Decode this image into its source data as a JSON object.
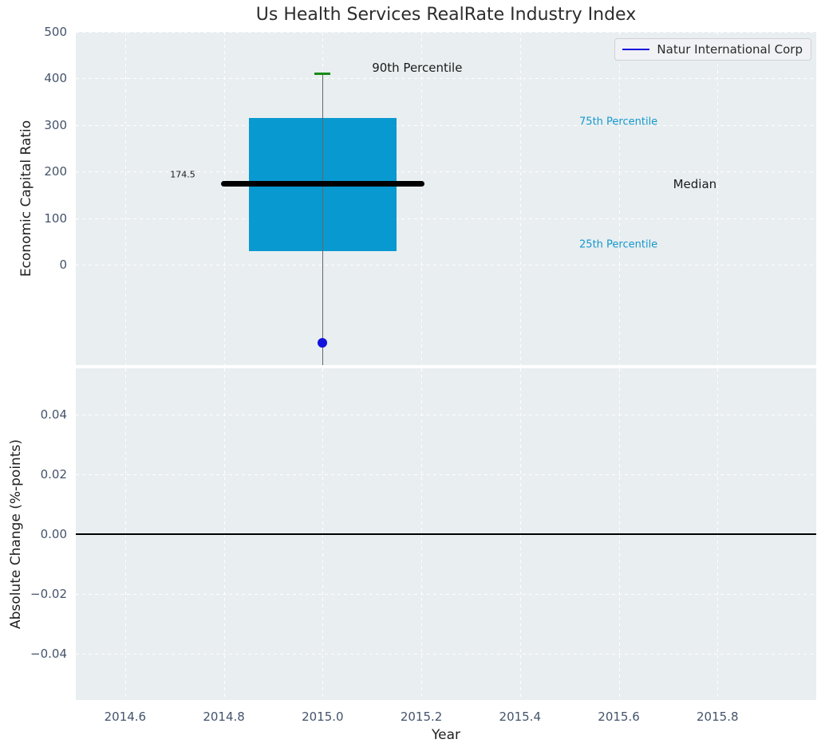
{
  "chart_data": {
    "type": "boxplot",
    "title": "Us Health Services RealRate Industry Index",
    "xlabel": "Year",
    "xlim": [
      2014.5,
      2016.0
    ],
    "x_ticks": [
      {
        "v": 2014.6,
        "label": "2014.6"
      },
      {
        "v": 2014.8,
        "label": "2014.8"
      },
      {
        "v": 2015.0,
        "label": "2015.0"
      },
      {
        "v": 2015.2,
        "label": "2015.2"
      },
      {
        "v": 2015.4,
        "label": "2015.4"
      },
      {
        "v": 2015.6,
        "label": "2015.6"
      },
      {
        "v": 2015.8,
        "label": "2015.8"
      }
    ],
    "legend": {
      "label": "Natur International Corp",
      "line_color": "#1212dd",
      "position": "upper right"
    },
    "top_panel": {
      "ylabel": "Economic Capital Ratio",
      "ylim": [
        -215,
        500
      ],
      "y_ticks": [
        {
          "v": 0,
          "label": "0"
        },
        {
          "v": 100,
          "label": "100"
        },
        {
          "v": 200,
          "label": "200"
        },
        {
          "v": 300,
          "label": "300"
        },
        {
          "v": 400,
          "label": "400"
        },
        {
          "v": 500,
          "label": "500"
        }
      ],
      "box": {
        "center_x": 2015.0,
        "width_years": 0.3,
        "q1": 30,
        "q3": 315,
        "median": 174.5,
        "p90_cap": 410,
        "cap_half_width_years": 0.016,
        "whisker_clipped_below_axis": true,
        "fill_color": "#0999d1",
        "cap_color": "#188a18",
        "whisker_color": "#666666"
      },
      "median_line": {
        "x1": 2014.8,
        "x2": 2015.2,
        "y": 174.5,
        "color": "#000000"
      },
      "company_point": {
        "x": 2015.0,
        "y": -167,
        "color": "#1212dd"
      },
      "annotations": [
        {
          "text": "90th Percentile",
          "x": 2015.1,
          "y": 423,
          "color": "#1a1a1a",
          "size": 15,
          "align": "left"
        },
        {
          "text": "75th Percentile",
          "x": 2015.52,
          "y": 307,
          "color": "#1699cc",
          "size": 13,
          "align": "left"
        },
        {
          "text": "Median",
          "x": 2015.71,
          "y": 174,
          "color": "#1a1a1a",
          "size": 15,
          "align": "left"
        },
        {
          "text": "25th Percentile",
          "x": 2015.52,
          "y": 43,
          "color": "#1699cc",
          "size": 13,
          "align": "left"
        },
        {
          "text": "174.5",
          "x": 2014.742,
          "y": 194,
          "color": "#1a1a1a",
          "size": 11,
          "align": "right"
        }
      ]
    },
    "bottom_panel": {
      "ylabel": "Absolute Change (%-points)",
      "ylim": [
        -0.0555,
        0.0555
      ],
      "y_ticks": [
        {
          "v": 0.04,
          "label": "0.04"
        },
        {
          "v": 0.02,
          "label": "0.02"
        },
        {
          "v": 0.0,
          "label": "0.00"
        },
        {
          "v": -0.02,
          "label": "−0.02"
        },
        {
          "v": -0.04,
          "label": "−0.04"
        }
      ],
      "zero_line": {
        "y": 0.0,
        "color": "#000000"
      }
    }
  }
}
